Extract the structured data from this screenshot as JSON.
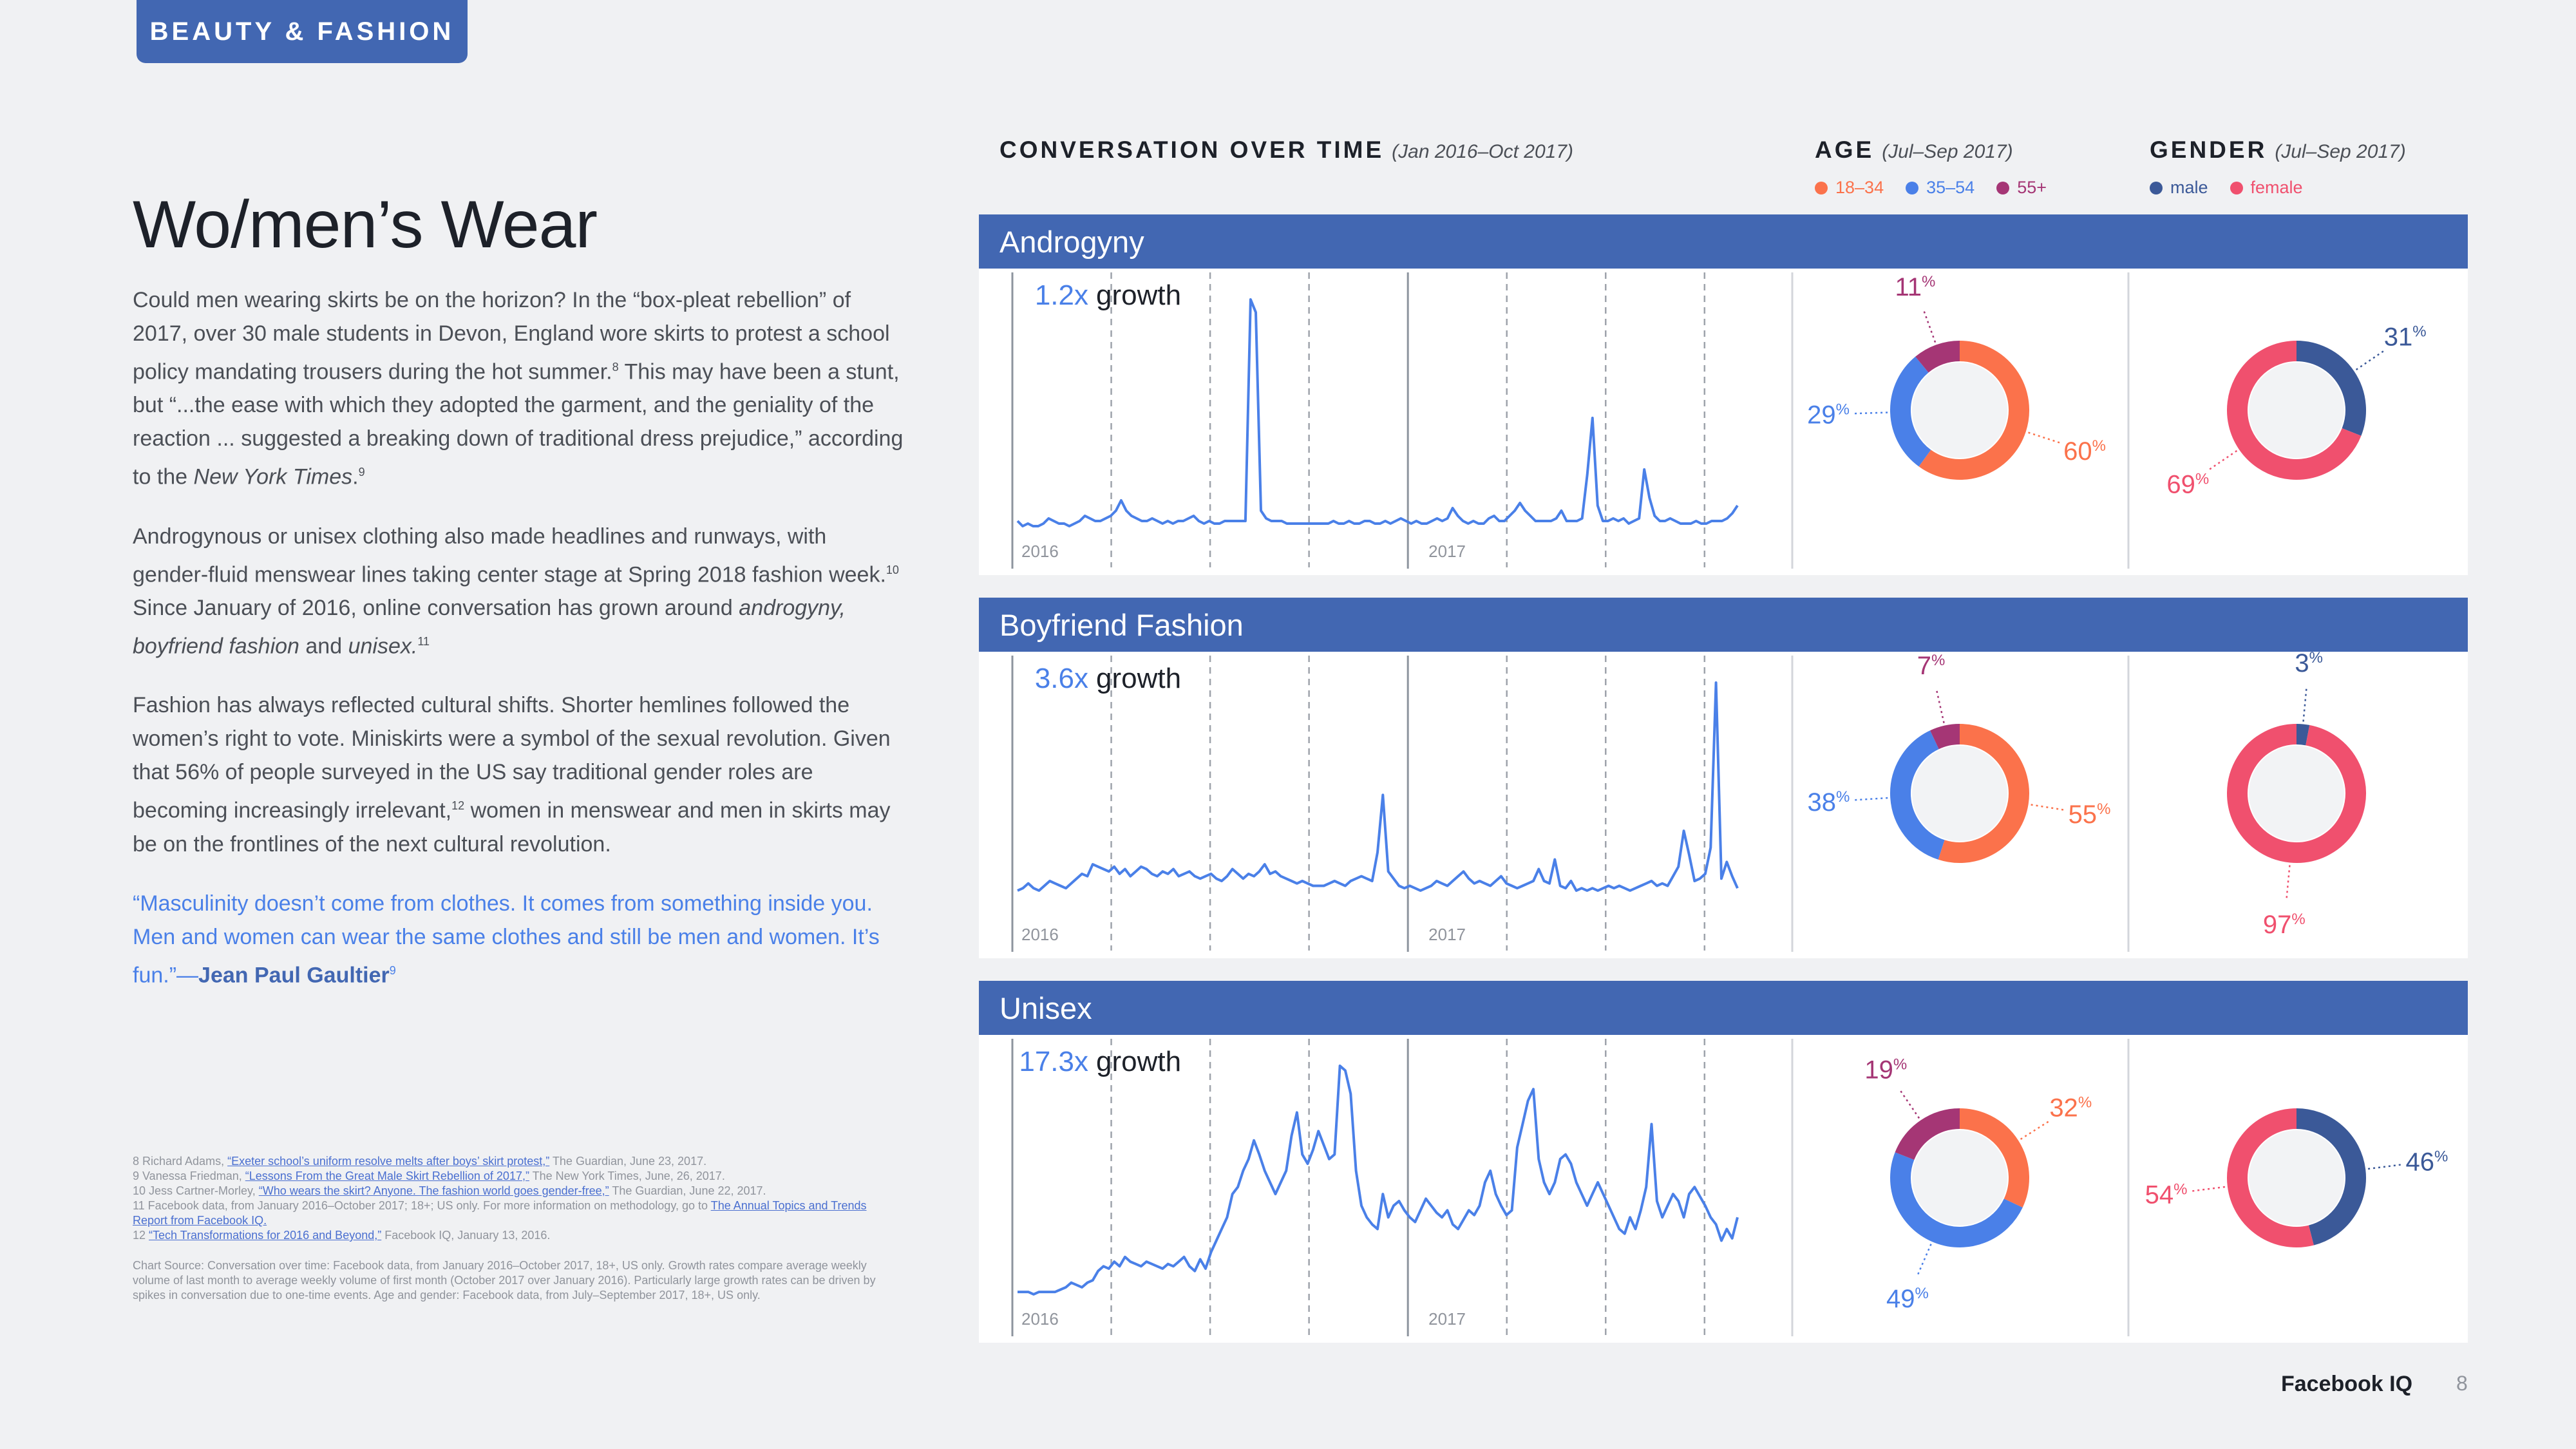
{
  "section_tag": "BEAUTY & FASHION",
  "title": "Wo/men’s Wear",
  "paragraphs": {
    "p1_a": "Could men wearing skirts be on the horizon? In the “box-pleat rebellion” of 2017, over 30 male students in Devon, England wore skirts to protest a school policy mandating trousers during the hot summer.",
    "p1_sup1": "8",
    "p1_b": " This may have been a stunt, but “...the ease with which they adopted the garment, and the geniality of the reaction ... suggested a breaking down of traditional dress prejudice,” according to the ",
    "p1_italic": "New York Times",
    "p1_c": ".",
    "p1_sup2": "9",
    "p2_a": "Androgynous or unisex clothing also made headlines and runways, with gender-fluid menswear lines taking center stage at Spring 2018 fashion week.",
    "p2_sup1": "10",
    "p2_b": " Since January of 2016, online conversation has grown around ",
    "p2_italic1": "androgyny, boyfriend fashion",
    "p2_c": " and ",
    "p2_italic2": "unisex.",
    "p2_sup2": "11",
    "p3_a": "Fashion has always reflected cultural shifts. Shorter hemlines followed the women’s right to vote. Miniskirts were a symbol of the sexual revolution. Given that 56% of people surveyed in the US say traditional gender roles are becoming increasingly irrelevant,",
    "p3_sup": "12",
    "p3_b": " women in menswear and men in skirts may be on the frontlines of the next cultural revolution.",
    "quote": "“Masculinity doesn’t come from clothes. It comes from something inside you. Men and women can wear the same clothes and still be men and women. It’s fun.”—",
    "quote_author": "Jean Paul Gaultier",
    "quote_sup": "9"
  },
  "footnotes": {
    "fn8_pre": "8  Richard Adams, ",
    "fn8_link": "“Exeter school’s uniform resolve melts after boys’ skirt protest,”",
    "fn8_post": " The Guardian, June 23, 2017.",
    "fn9_pre": "9  Vanessa Friedman, ",
    "fn9_link": "“Lessons From the Great Male Skirt Rebellion of 2017,”",
    "fn9_post": " The New York Times, June, 26, 2017.",
    "fn10_pre": "10  Jess Cartner-Morley, ",
    "fn10_link": "“Who wears the skirt? Anyone. The fashion world goes gender-free,”",
    "fn10_post": " The Guardian, June 22, 2017.",
    "fn11_pre": "11  Facebook data, from January 2016–October 2017; 18+; US only. For more information on methodology, go to ",
    "fn11_link": "The Annual Topics and Trends Report from Facebook IQ.",
    "fn12_pre": "12  ",
    "fn12_link": "“Tech Transformations for 2016 and Beyond,”",
    "fn12_post": " Facebook IQ, January 13, 2016.",
    "chart_source": "Chart Source: Conversation over time: Facebook data, from January 2016–October 2017, 18+, US only. Growth rates compare average weekly volume of last month to average weekly volume of first month (October 2017 over January 2016). Particularly large growth rates can be driven by spikes in conversation due to one-time events. Age and gender: Facebook data, from July–September 2017, 18+, US only."
  },
  "headers": {
    "conversation": "CONVERSATION OVER TIME",
    "conversation_sub": "(Jan 2016–Oct 2017)",
    "age": "AGE",
    "age_sub": "(Jul–Sep 2017)",
    "gender": "GENDER",
    "gender_sub": "(Jul–Sep 2017)"
  },
  "legends": {
    "age": [
      "18–34",
      "35–54",
      "55+"
    ],
    "gender": [
      "male",
      "female"
    ]
  },
  "colors": {
    "brand_blue": "#4267b2",
    "line": "#4a80e8",
    "age_18_34": "#fb724b",
    "age_35_54": "#4a80e8",
    "age_55_plus": "#a53675",
    "male": "#3b5998",
    "female": "#f0506e",
    "donut_center": "#f2f3f5"
  },
  "growth_word": "growth",
  "chart_data": [
    {
      "type": "line",
      "topic": "Androgyny",
      "growth": "1.2x",
      "x_labels": [
        "2016",
        "2017"
      ],
      "values": [
        4,
        2,
        3,
        2,
        2,
        3,
        5,
        4,
        3,
        3,
        2,
        3,
        4,
        6,
        5,
        4,
        4,
        5,
        6,
        8,
        12,
        8,
        6,
        5,
        4,
        4,
        5,
        4,
        3,
        4,
        3,
        4,
        4,
        5,
        6,
        4,
        3,
        4,
        3,
        3,
        4,
        4,
        4,
        4,
        4,
        90,
        85,
        8,
        5,
        4,
        4,
        4,
        3,
        3,
        3,
        3,
        3,
        3,
        3,
        3,
        3,
        4,
        3,
        3,
        4,
        3,
        3,
        4,
        4,
        3,
        3,
        4,
        3,
        4,
        5,
        4,
        3,
        4,
        3,
        3,
        4,
        5,
        4,
        5,
        9,
        6,
        4,
        3,
        4,
        3,
        3,
        5,
        6,
        4,
        4,
        6,
        8,
        11,
        8,
        6,
        4,
        4,
        4,
        4,
        5,
        8,
        4,
        4,
        4,
        5,
        22,
        44,
        10,
        4,
        4,
        5,
        4,
        5,
        3,
        4,
        5,
        24,
        13,
        6,
        4,
        4,
        5,
        4,
        3,
        3,
        3,
        4,
        3,
        3,
        4,
        4,
        4,
        5,
        7,
        10
      ]
    },
    {
      "type": "line",
      "topic": "Boyfriend Fashion",
      "growth": "3.6x",
      "x_labels": [
        "2016",
        "2017"
      ],
      "values": [
        10,
        11,
        13,
        11,
        10,
        12,
        14,
        13,
        12,
        11,
        13,
        15,
        17,
        16,
        21,
        20,
        19,
        18,
        20,
        17,
        19,
        16,
        18,
        20,
        19,
        17,
        16,
        18,
        17,
        19,
        16,
        17,
        18,
        16,
        15,
        16,
        17,
        15,
        14,
        16,
        19,
        17,
        15,
        17,
        16,
        18,
        21,
        17,
        18,
        16,
        15,
        14,
        13,
        14,
        13,
        12,
        12,
        12,
        13,
        14,
        13,
        12,
        14,
        15,
        16,
        15,
        14,
        26,
        50,
        18,
        15,
        12,
        11,
        12,
        11,
        10,
        11,
        12,
        14,
        13,
        12,
        14,
        16,
        18,
        15,
        13,
        14,
        13,
        12,
        14,
        16,
        13,
        12,
        11,
        12,
        13,
        14,
        19,
        14,
        13,
        23,
        12,
        11,
        14,
        10,
        11,
        10,
        11,
        10,
        11,
        12,
        11,
        12,
        11,
        10,
        11,
        12,
        13,
        14,
        12,
        13,
        12,
        16,
        20,
        35,
        25,
        14,
        15,
        17,
        28,
        97,
        15,
        22,
        16,
        11
      ]
    },
    {
      "type": "line",
      "topic": "Unisex",
      "growth": "17.3x",
      "x_labels": [
        "2016",
        "2017"
      ],
      "values": [
        3,
        3,
        3,
        2,
        3,
        3,
        3,
        3,
        4,
        5,
        7,
        6,
        5,
        7,
        8,
        12,
        14,
        13,
        16,
        14,
        18,
        16,
        15,
        14,
        16,
        15,
        14,
        13,
        15,
        14,
        16,
        18,
        14,
        12,
        17,
        13,
        20,
        25,
        30,
        35,
        45,
        48,
        55,
        60,
        68,
        62,
        55,
        50,
        45,
        50,
        55,
        70,
        80,
        62,
        58,
        64,
        72,
        66,
        60,
        62,
        100,
        98,
        88,
        55,
        40,
        35,
        32,
        30,
        45,
        35,
        40,
        42,
        38,
        35,
        33,
        38,
        43,
        40,
        37,
        35,
        38,
        32,
        30,
        34,
        38,
        36,
        40,
        50,
        55,
        45,
        40,
        36,
        38,
        65,
        75,
        85,
        90,
        60,
        50,
        45,
        50,
        60,
        62,
        58,
        50,
        45,
        40,
        45,
        50,
        45,
        40,
        35,
        30,
        28,
        35,
        30,
        38,
        48,
        75,
        42,
        35,
        40,
        45,
        42,
        35,
        45,
        48,
        44,
        40,
        35,
        32,
        25,
        30,
        26,
        35
      ]
    }
  ],
  "donut_data": [
    {
      "topic": "Androgyny",
      "age": {
        "labels": [
          "18–34",
          "35–54",
          "55+"
        ],
        "values": [
          60,
          29,
          11
        ],
        "display": [
          "60",
          "29",
          "11"
        ]
      },
      "gender": {
        "labels": [
          "male",
          "female"
        ],
        "values": [
          31,
          69
        ],
        "display": [
          "31",
          "69"
        ]
      }
    },
    {
      "topic": "Boyfriend Fashion",
      "age": {
        "labels": [
          "18–34",
          "35–54",
          "55+"
        ],
        "values": [
          55,
          38,
          7
        ],
        "display": [
          "55",
          "38",
          "7"
        ]
      },
      "gender": {
        "labels": [
          "male",
          "female"
        ],
        "values": [
          3,
          97
        ],
        "display": [
          "3",
          "97"
        ]
      }
    },
    {
      "topic": "Unisex",
      "age": {
        "labels": [
          "18–34",
          "35–54",
          "55+"
        ],
        "values": [
          32,
          49,
          19
        ],
        "display": [
          "32",
          "49",
          "19"
        ]
      },
      "gender": {
        "labels": [
          "male",
          "female"
        ],
        "values": [
          46,
          54
        ],
        "display": [
          "46",
          "54"
        ]
      }
    }
  ],
  "percent_sign": "%",
  "footer": {
    "brand": "Facebook IQ",
    "page": "8"
  }
}
